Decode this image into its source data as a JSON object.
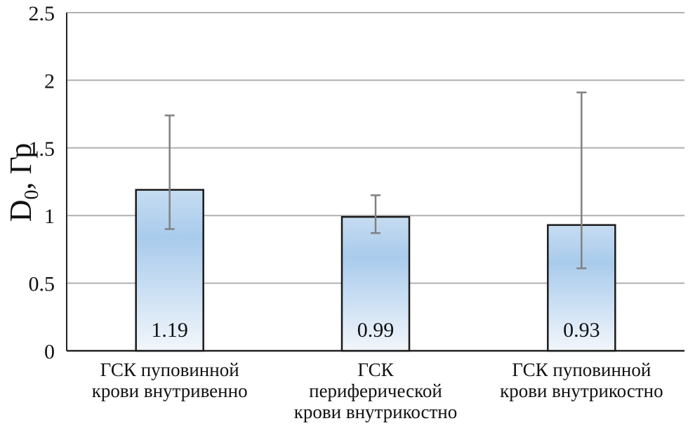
{
  "chart_data": {
    "type": "bar",
    "ylabel": "D",
    "ylabel_subscript": "0",
    "ylabel_unit": ", Гр",
    "ylim": [
      0,
      2.5
    ],
    "yticks": [
      "0",
      "0.5",
      "1",
      "1.5",
      "2",
      "2.5"
    ],
    "grid": true,
    "categories": [
      [
        "ГСК пуповинной",
        "крови внутривенно"
      ],
      [
        "ГСК",
        "периферической",
        "крови внутрикостно"
      ],
      [
        "ГСК пуповинной",
        "крови внутрикостно"
      ]
    ],
    "values": [
      1.19,
      0.99,
      0.93
    ],
    "data_labels": [
      "1.19",
      "0.99",
      "0.93"
    ],
    "error_bars": [
      {
        "low": 0.9,
        "high": 1.74
      },
      {
        "low": 0.87,
        "high": 1.15
      },
      {
        "low": 0.61,
        "high": 1.91
      }
    ],
    "colors": {
      "bar_top": "#a9cbec",
      "bar_bottom": "#f2f6fb",
      "bar_edge": "#1a1a1a",
      "error": "#808080",
      "grid": "#b0b0b0"
    }
  }
}
